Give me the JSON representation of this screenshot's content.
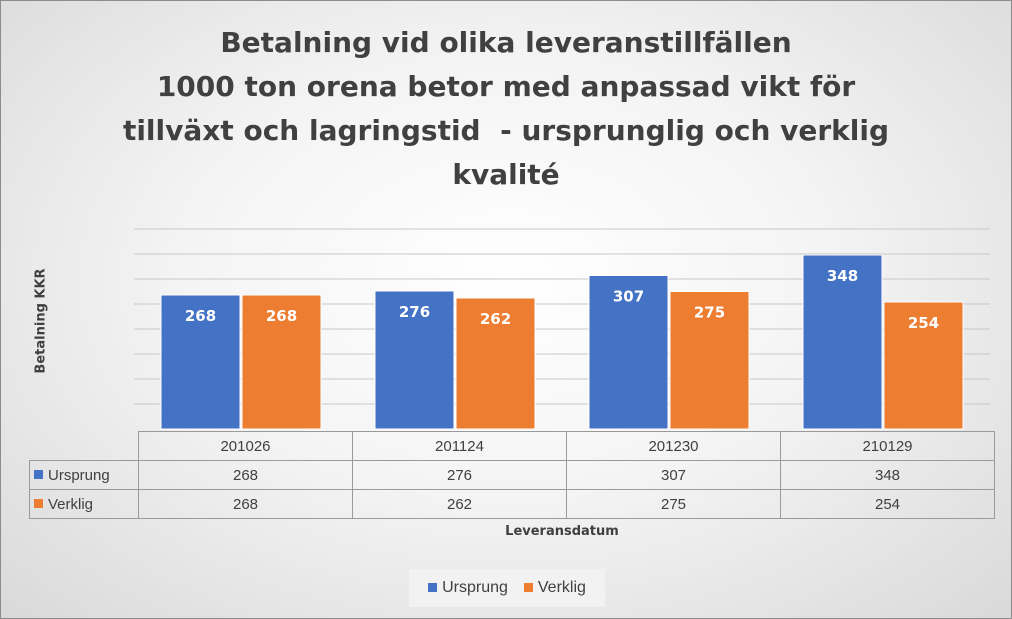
{
  "chart_data": {
    "type": "bar",
    "title_lines": [
      "Betalning vid olika leveranstillfällen",
      "1000 ton orena betor med anpassad vikt för",
      "tillväxt och lagringstid  - ursprunglig och verklig",
      "kvalité"
    ],
    "xlabel": "Leveransdatum",
    "ylabel": "Betalning KKR",
    "categories": [
      "201026",
      "201124",
      "201230",
      "210129"
    ],
    "series": [
      {
        "name": "Ursprung",
        "color": "#4472c4",
        "values": [
          268,
          276,
          307,
          348
        ]
      },
      {
        "name": "Verklig",
        "color": "#ed7d31",
        "values": [
          268,
          262,
          275,
          254
        ]
      }
    ],
    "ylim": [
      0,
      400
    ],
    "grid": true,
    "legend_position": "bottom",
    "data_table": true
  }
}
